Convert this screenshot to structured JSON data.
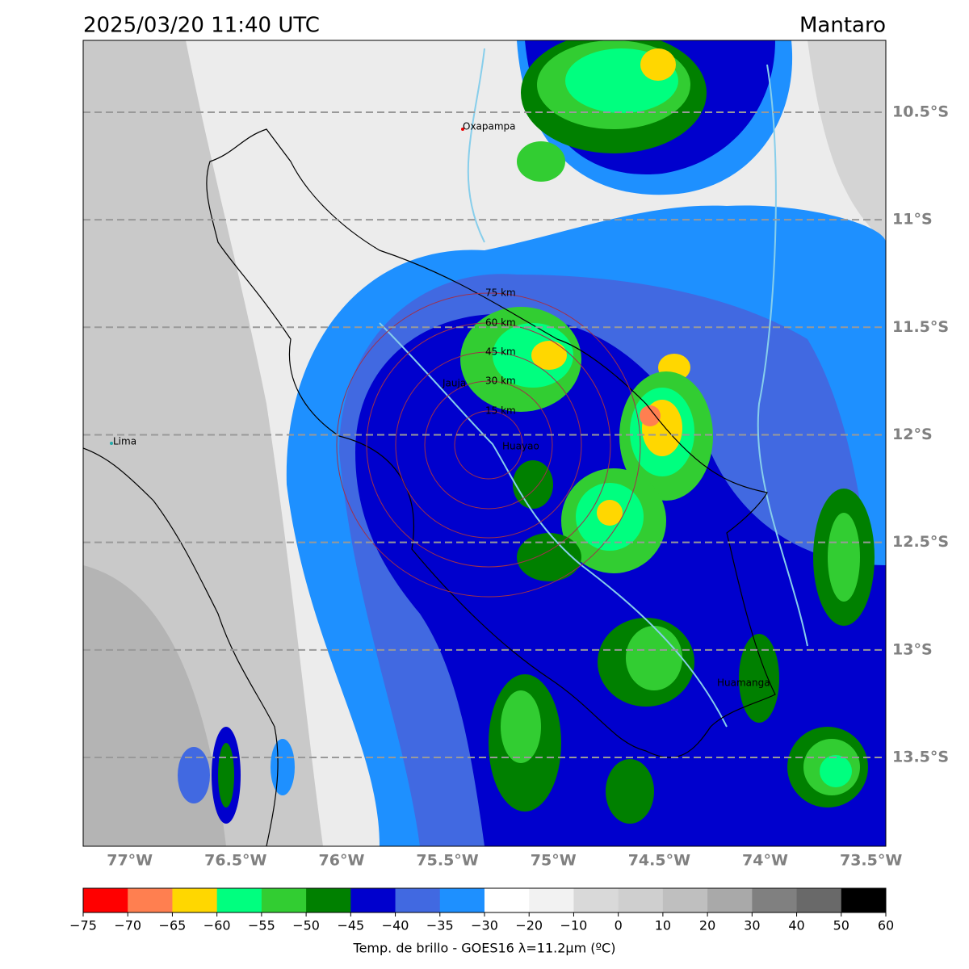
{
  "header": {
    "datetime": "2025/03/20 11:40 UTC",
    "region": "Mantaro"
  },
  "map": {
    "xlim": [
      -77.22,
      -73.43
    ],
    "ylim": [
      -13.913,
      -10.166
    ],
    "xticks": [
      {
        "value": -77,
        "label": "77°W"
      },
      {
        "value": -76.5,
        "label": "76.5°W"
      },
      {
        "value": -76,
        "label": "76°W"
      },
      {
        "value": -75.5,
        "label": "75.5°W"
      },
      {
        "value": -75,
        "label": "75°W"
      },
      {
        "value": -74.5,
        "label": "74.5°W"
      },
      {
        "value": -74,
        "label": "74°W"
      },
      {
        "value": -73.5,
        "label": "73.5°W"
      }
    ],
    "yticks": [
      {
        "value": -10.5,
        "label": "10.5°S"
      },
      {
        "value": -11,
        "label": "11°S"
      },
      {
        "value": -11.5,
        "label": "11.5°S"
      },
      {
        "value": -12,
        "label": "12°S"
      },
      {
        "value": -12.5,
        "label": "12.5°S"
      },
      {
        "value": -13,
        "label": "13°S"
      },
      {
        "value": -13.5,
        "label": "13.5°S"
      }
    ],
    "places": [
      "Oxapampa",
      "Lima",
      "Jauja",
      "Huayao",
      "Huamanga"
    ],
    "ring_labels": [
      "75 km",
      "60 km",
      "45 km",
      "30 km",
      "15 km"
    ]
  },
  "colorbar": {
    "colors": [
      "#ff0000",
      "#ff7f50",
      "#ffd700",
      "#00ff7f",
      "#32cd32",
      "#008000",
      "#0000cd",
      "#4169e1",
      "#1e90ff",
      "#ffffff",
      "#f2f2f2",
      "#d9d9d9",
      "#cfcfcf",
      "#bfbfbf",
      "#a9a9a9",
      "#808080",
      "#696969",
      "#000000"
    ],
    "ticks": [
      {
        "value": -75,
        "label": "−75"
      },
      {
        "value": -70,
        "label": "−70"
      },
      {
        "value": -65,
        "label": "−65"
      },
      {
        "value": -60,
        "label": "−60"
      },
      {
        "value": -55,
        "label": "−55"
      },
      {
        "value": -50,
        "label": "−50"
      },
      {
        "value": -45,
        "label": "−45"
      },
      {
        "value": -40,
        "label": "−40"
      },
      {
        "value": -35,
        "label": "−35"
      },
      {
        "value": -30,
        "label": "−30"
      },
      {
        "value": -20,
        "label": "−20"
      },
      {
        "value": -10,
        "label": "−10"
      },
      0,
      10,
      20,
      30,
      40,
      50,
      60
    ],
    "label": "Temp. de brillo - GOES16 λ=11.2μm (ºC)"
  }
}
